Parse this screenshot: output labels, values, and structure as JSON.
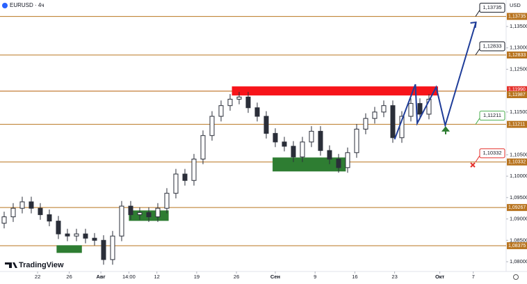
{
  "chart_data": {
    "type": "candlestick",
    "title": "EURUSD · 4ч",
    "currency": "USD",
    "brand": "TradingView",
    "candle_color": "#2a2e39",
    "open": [
      1.089,
      1.0905,
      1.0925,
      1.094,
      1.0925,
      1.091,
      1.0895,
      1.0865,
      1.086,
      1.0865,
      1.0855,
      1.085,
      1.0805,
      1.086,
      1.093,
      1.091,
      1.0915,
      1.0905,
      1.0925,
      1.096,
      1.1005,
      1.099,
      1.104,
      1.1095,
      1.114,
      1.1165,
      1.118,
      1.1185,
      1.116,
      1.114,
      1.11,
      1.108,
      1.107,
      1.1045,
      1.108,
      1.1105,
      1.106,
      1.104,
      1.102,
      1.1055,
      1.111,
      1.1135,
      1.115,
      1.1165,
      1.109,
      1.114,
      1.117,
      1.1145
    ],
    "high": [
      1.0917,
      1.0937,
      1.0952,
      1.0952,
      1.0937,
      1.0922,
      1.0907,
      1.0877,
      1.0877,
      1.0877,
      1.0867,
      1.0862,
      1.0872,
      1.0942,
      1.0942,
      1.0927,
      1.0927,
      1.0937,
      1.0972,
      1.1017,
      1.1017,
      1.1052,
      1.1107,
      1.1152,
      1.1177,
      1.1192,
      1.1197,
      1.1197,
      1.1172,
      1.1152,
      1.1112,
      1.1092,
      1.1082,
      1.1092,
      1.1117,
      1.1117,
      1.1072,
      1.1052,
      1.1067,
      1.1122,
      1.1147,
      1.1162,
      1.1177,
      1.1177,
      1.1152,
      1.1182,
      1.1182,
      1.1192
    ],
    "low": [
      1.0878,
      1.0893,
      1.0913,
      1.0913,
      1.0898,
      1.0883,
      1.0853,
      1.0848,
      1.0848,
      1.0843,
      1.0838,
      1.0793,
      1.0793,
      1.0848,
      1.0898,
      1.0898,
      1.0893,
      1.0893,
      1.0913,
      1.0948,
      1.0978,
      1.0978,
      1.1028,
      1.1083,
      1.1128,
      1.1153,
      1.1168,
      1.1148,
      1.1128,
      1.1088,
      1.1068,
      1.1058,
      1.1033,
      1.1033,
      1.1068,
      1.1048,
      1.1028,
      1.1008,
      1.1008,
      1.1043,
      1.1098,
      1.1123,
      1.1138,
      1.1078,
      1.1078,
      1.1128,
      1.1133,
      1.1133
    ],
    "close": [
      1.0905,
      1.0925,
      1.094,
      1.0925,
      1.091,
      1.0895,
      1.0865,
      1.086,
      1.0865,
      1.0855,
      1.085,
      1.0805,
      1.086,
      1.093,
      1.091,
      1.0915,
      1.0905,
      1.0925,
      1.096,
      1.1005,
      1.099,
      1.104,
      1.1095,
      1.114,
      1.1165,
      1.118,
      1.1185,
      1.116,
      1.114,
      1.11,
      1.108,
      1.107,
      1.1045,
      1.108,
      1.1105,
      1.106,
      1.104,
      1.102,
      1.1055,
      1.111,
      1.1135,
      1.115,
      1.1165,
      1.109,
      1.114,
      1.117,
      1.1145,
      1.118
    ],
    "xlim": [
      -0.46,
      55.54
    ],
    "ylim": [
      1.07772,
      1.14119
    ],
    "xticks": [
      {
        "value": 3.7,
        "label": "22"
      },
      {
        "value": 7.2,
        "label": "26"
      },
      {
        "value": 10.7,
        "label": "Авг"
      },
      {
        "value": 13.8,
        "label": "14:00"
      },
      {
        "value": 16.9,
        "label": "12"
      },
      {
        "value": 21.3,
        "label": "19"
      },
      {
        "value": 25.7,
        "label": "26"
      },
      {
        "value": 30.0,
        "label": "Сен"
      },
      {
        "value": 34.4,
        "label": "9"
      },
      {
        "value": 38.8,
        "label": "16"
      },
      {
        "value": 43.2,
        "label": "23"
      },
      {
        "value": 48.2,
        "label": "Окт"
      },
      {
        "value": 51.9,
        "label": "7"
      }
    ],
    "yticks": [
      {
        "value": 1.135,
        "label": "1,13500"
      },
      {
        "value": 1.13,
        "label": "1,13000"
      },
      {
        "value": 1.125,
        "label": "1,12500"
      },
      {
        "value": 1.115,
        "label": "1,11500"
      },
      {
        "value": 1.105,
        "label": "1,10500"
      },
      {
        "value": 1.1,
        "label": "1,10000"
      },
      {
        "value": 1.095,
        "label": "1,09500"
      },
      {
        "value": 1.09,
        "label": "1,09000"
      },
      {
        "value": 1.085,
        "label": "1,08500"
      },
      {
        "value": 1.08,
        "label": "1,08000"
      }
    ],
    "levels": [
      {
        "value": 1.13735,
        "label": "1,13735",
        "color": "#b8741f"
      },
      {
        "value": 1.12833,
        "label": "1,12833",
        "color": "#b8741f"
      },
      {
        "value": 1.1199,
        "label": "1,11990",
        "color": "#e5322d"
      },
      {
        "value": 1.11987,
        "label": "1,11987",
        "color": "#b8741f"
      },
      {
        "value": 1.11211,
        "label": "1,11211",
        "color": "#b8741f"
      },
      {
        "value": 1.10332,
        "label": "1,10332",
        "color": "#b8741f"
      },
      {
        "value": 1.09267,
        "label": "1,09267",
        "color": "#b8741f"
      },
      {
        "value": 1.08375,
        "label": "1,08375",
        "color": "#b8741f"
      }
    ],
    "zones": [
      {
        "color": "#f7141a",
        "x": [
          25.2,
          48.0
        ],
        "y": [
          1.11887,
          1.12099
        ]
      },
      {
        "color": "#2e7d32",
        "x": [
          29.7,
          37.8
        ],
        "y": [
          1.10111,
          1.10437
        ]
      },
      {
        "color": "#2e7d32",
        "x": [
          13.8,
          18.2
        ],
        "y": [
          1.08955,
          1.09199
        ]
      },
      {
        "color": "#2e7d32",
        "x": [
          5.8,
          8.6
        ],
        "y": [
          1.08206,
          1.08385
        ]
      }
    ],
    "projection": {
      "color": "#1f3d99",
      "x": [
        43.2,
        45.5,
        45.7,
        47.8,
        48.8,
        52.2
      ],
      "y": [
        1.10861,
        1.12148,
        1.11236,
        1.12083,
        1.11187,
        1.13598
      ]
    },
    "callouts": [
      {
        "value": 1.13735,
        "label": "1,13735",
        "color": "#131722"
      },
      {
        "value": 1.12833,
        "label": "1,12833",
        "color": "#131722"
      },
      {
        "value": 1.11211,
        "label": "1,11211",
        "color": "#4caf50"
      },
      {
        "value": 1.10332,
        "label": "1,10332",
        "color": "#e5322d"
      }
    ]
  }
}
